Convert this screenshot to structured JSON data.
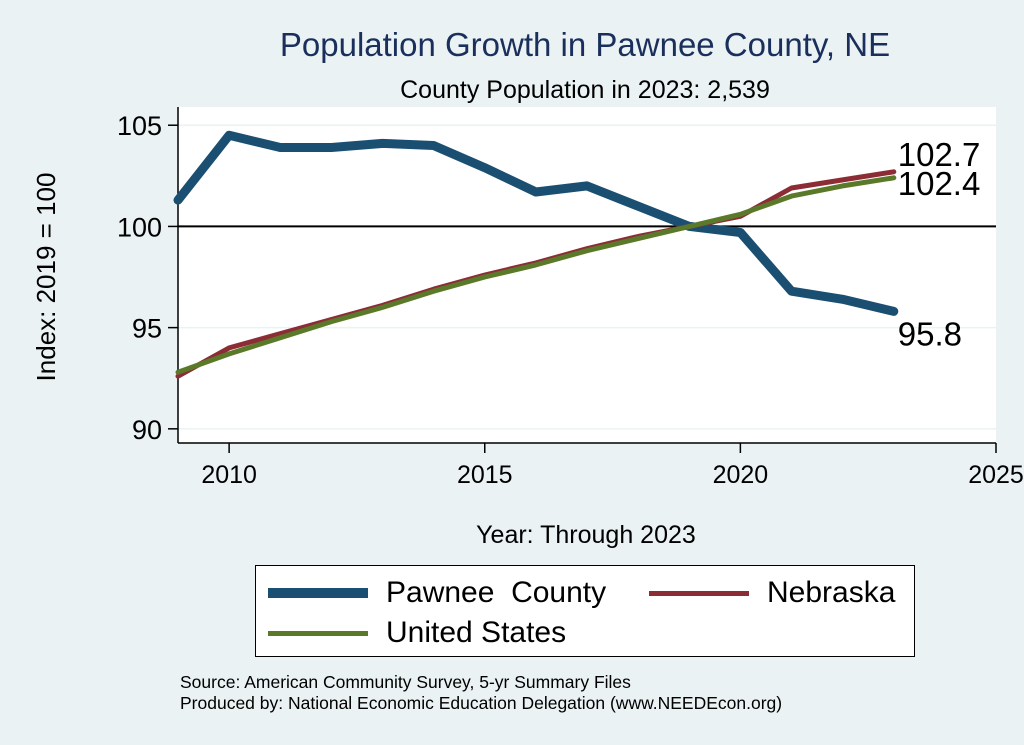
{
  "chart_data": {
    "type": "line",
    "title": "Population Growth in Pawnee County, NE",
    "subtitle": "County Population in 2023: 2,539",
    "xlabel": "Year: Through 2023",
    "ylabel": "Index: 2019 = 100",
    "xlim": [
      2009,
      2025
    ],
    "ylim": [
      89.3,
      105.9
    ],
    "x_ticks": [
      2010,
      2015,
      2020,
      2025
    ],
    "y_ticks": [
      90,
      95,
      100,
      105
    ],
    "reference_line": 100,
    "x": [
      2009,
      2010,
      2011,
      2012,
      2013,
      2014,
      2015,
      2016,
      2017,
      2018,
      2019,
      2020,
      2021,
      2022,
      2023
    ],
    "series": [
      {
        "name": "Pawnee  County",
        "color": "#1b4f72",
        "values": [
          101.3,
          104.5,
          103.9,
          103.9,
          104.1,
          104.0,
          102.9,
          101.7,
          102.0,
          101.0,
          100.0,
          99.7,
          96.8,
          96.4,
          95.8
        ],
        "end_label": "95.8"
      },
      {
        "name": "Nebraska",
        "color": "#8c2d35",
        "values": [
          92.6,
          94.0,
          94.7,
          95.4,
          96.1,
          96.9,
          97.6,
          98.2,
          98.9,
          99.5,
          100.0,
          100.5,
          101.9,
          102.3,
          102.7
        ],
        "end_label": "102.7"
      },
      {
        "name": "United States",
        "color": "#5a7a2a",
        "values": [
          92.8,
          93.7,
          94.5,
          95.3,
          96.0,
          96.8,
          97.5,
          98.1,
          98.8,
          99.4,
          100.0,
          100.6,
          101.5,
          102.0,
          102.4
        ],
        "end_label": "102.4"
      }
    ]
  },
  "legend": {
    "items": [
      {
        "label": "Pawnee  County",
        "color": "#1b4f72"
      },
      {
        "label": "Nebraska",
        "color": "#8c2d35"
      },
      {
        "label": "United States",
        "color": "#5a7a2a"
      }
    ]
  },
  "footer": {
    "source": "Source: American Community Survey, 5-yr Summary Files",
    "produced_by": "Produced by: National Economic Education Delegation (www.NEEDEcon.org)"
  }
}
